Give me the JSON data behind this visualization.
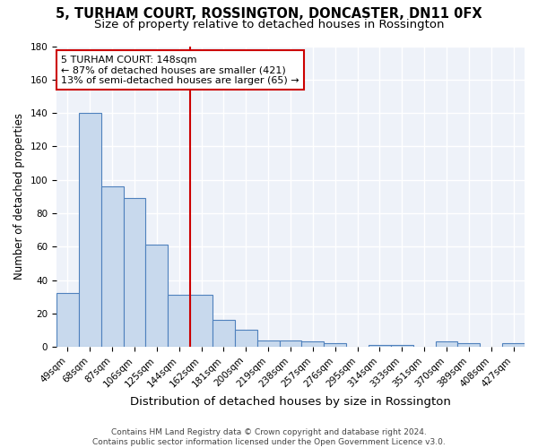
{
  "title": "5, TURHAM COURT, ROSSINGTON, DONCASTER, DN11 0FX",
  "subtitle": "Size of property relative to detached houses in Rossington",
  "xlabel": "Distribution of detached houses by size in Rossington",
  "ylabel": "Number of detached properties",
  "categories": [
    "49sqm",
    "68sqm",
    "87sqm",
    "106sqm",
    "125sqm",
    "144sqm",
    "162sqm",
    "181sqm",
    "200sqm",
    "219sqm",
    "238sqm",
    "257sqm",
    "276sqm",
    "295sqm",
    "314sqm",
    "333sqm",
    "351sqm",
    "370sqm",
    "389sqm",
    "408sqm",
    "427sqm"
  ],
  "values": [
    32,
    140,
    96,
    89,
    61,
    31,
    31,
    16,
    10,
    4,
    4,
    3,
    2,
    0,
    1,
    1,
    0,
    3,
    2,
    0,
    2
  ],
  "bar_color": "#c8d9ed",
  "bar_edge_color": "#4f81bd",
  "vline_color": "#cc0000",
  "annotation_text": "5 TURHAM COURT: 148sqm\n← 87% of detached houses are smaller (421)\n13% of semi-detached houses are larger (65) →",
  "annotation_box_color": "#ffffff",
  "annotation_box_edge_color": "#cc0000",
  "ylim": [
    0,
    180
  ],
  "yticks": [
    0,
    20,
    40,
    60,
    80,
    100,
    120,
    140,
    160,
    180
  ],
  "bg_color": "#eef2f9",
  "grid_color": "#ffffff",
  "footer": "Contains HM Land Registry data © Crown copyright and database right 2024.\nContains public sector information licensed under the Open Government Licence v3.0.",
  "title_fontsize": 10.5,
  "subtitle_fontsize": 9.5,
  "xlabel_fontsize": 9.5,
  "ylabel_fontsize": 8.5,
  "annotation_fontsize": 8,
  "tick_fontsize": 7.5,
  "footer_fontsize": 6.5
}
